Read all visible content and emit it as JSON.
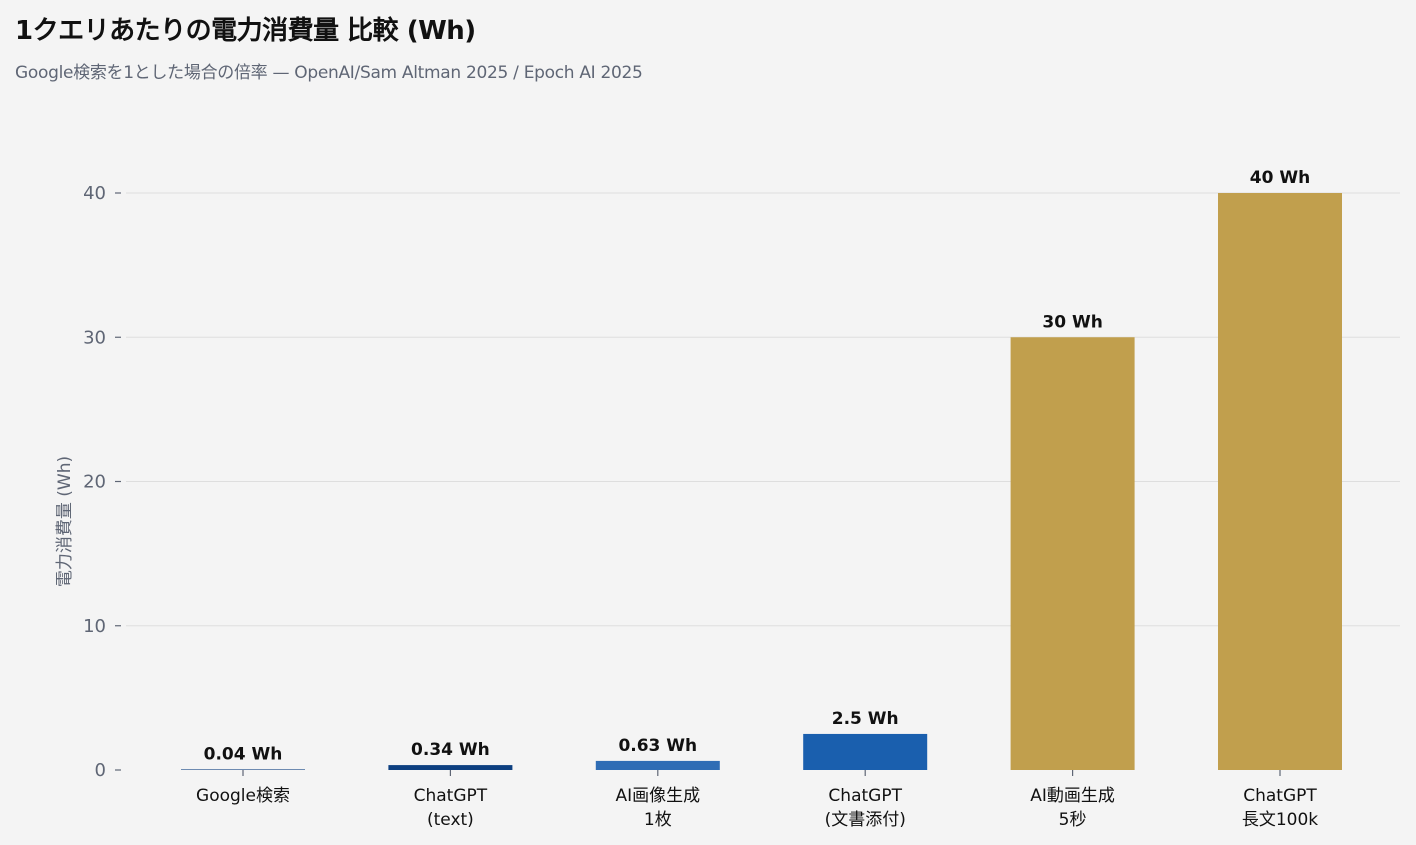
{
  "chart_data": {
    "type": "bar",
    "title": "1クエリあたりの電力消費量 比較 (Wh)",
    "subtitle": "Google検索を1とした場合の倍率 — OpenAI/Sam Altman 2025 / Epoch AI 2025",
    "xlabel": "",
    "ylabel": "電力消費量 (Wh)",
    "ylim": [
      0,
      40
    ],
    "yticks": [
      0,
      10,
      20,
      30,
      40
    ],
    "grid": true,
    "categories": [
      [
        "Google検索"
      ],
      [
        "ChatGPT",
        "(text)"
      ],
      [
        "AI画像生成",
        "1枚"
      ],
      [
        "ChatGPT",
        "(文書添付)"
      ],
      [
        "AI動画生成",
        "5秒"
      ],
      [
        "ChatGPT",
        "長文100k"
      ]
    ],
    "values": [
      0.04,
      0.34,
      0.63,
      2.5,
      30,
      40
    ],
    "data_labels": [
      "0.04 Wh",
      "0.34 Wh",
      "0.63 Wh",
      "2.5 Wh",
      "30 Wh",
      "40 Wh"
    ],
    "colors": [
      "#0d3f80",
      "#0d3f80",
      "#2f6db5",
      "#1a5fae",
      "#c19f4d",
      "#c19f4d"
    ]
  }
}
